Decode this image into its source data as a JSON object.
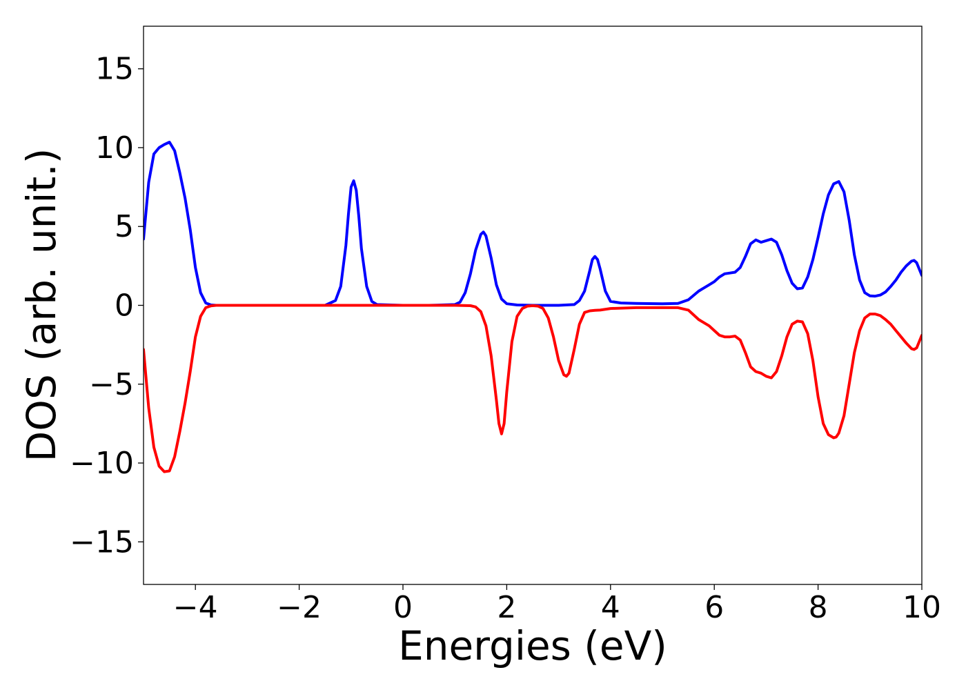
{
  "chart_data": {
    "type": "line",
    "xlabel": "Energies (eV)",
    "ylabel": "DOS (arb. unit.)",
    "xlim": [
      -5,
      10
    ],
    "ylim": [
      -17.7,
      17.7
    ],
    "xticks": [
      -4,
      -2,
      0,
      2,
      4,
      6,
      8,
      10
    ],
    "xtick_labels": [
      "−4",
      "−2",
      "0",
      "2",
      "4",
      "6",
      "8",
      "10"
    ],
    "yticks": [
      15,
      10,
      5,
      0,
      -5,
      -10,
      -15
    ],
    "ytick_labels": [
      "15",
      "10",
      "5",
      "0",
      "−5",
      "−10",
      "−15"
    ],
    "grid": false,
    "legend": "none",
    "series": [
      {
        "color": "#0000ff",
        "x": [
          -5.0,
          -4.9,
          -4.8,
          -4.7,
          -4.6,
          -4.5,
          -4.4,
          -4.3,
          -4.2,
          -4.1,
          -4.0,
          -3.9,
          -3.8,
          -3.7,
          -3.6,
          -3.0,
          -2.0,
          -1.5,
          -1.3,
          -1.2,
          -1.1,
          -1.05,
          -1.0,
          -0.95,
          -0.9,
          -0.85,
          -0.8,
          -0.7,
          -0.6,
          -0.5,
          0.0,
          0.5,
          1.0,
          1.1,
          1.2,
          1.3,
          1.4,
          1.5,
          1.55,
          1.6,
          1.7,
          1.8,
          1.9,
          2.0,
          2.2,
          2.5,
          3.0,
          3.3,
          3.4,
          3.5,
          3.6,
          3.65,
          3.7,
          3.75,
          3.8,
          3.9,
          4.0,
          4.2,
          4.5,
          5.0,
          5.3,
          5.5,
          5.7,
          5.9,
          6.0,
          6.1,
          6.2,
          6.3,
          6.4,
          6.5,
          6.6,
          6.7,
          6.8,
          6.9,
          7.0,
          7.1,
          7.2,
          7.3,
          7.4,
          7.5,
          7.6,
          7.7,
          7.8,
          7.9,
          8.0,
          8.1,
          8.2,
          8.3,
          8.4,
          8.5,
          8.6,
          8.7,
          8.8,
          8.9,
          9.0,
          9.1,
          9.2,
          9.3,
          9.4,
          9.5,
          9.6,
          9.7,
          9.8,
          9.85,
          9.9,
          10.0
        ],
        "y": [
          4.2,
          7.8,
          9.6,
          10.0,
          10.2,
          10.35,
          9.8,
          8.4,
          6.8,
          4.8,
          2.4,
          0.8,
          0.15,
          0.02,
          0.0,
          0.0,
          0.0,
          0.0,
          0.3,
          1.2,
          3.8,
          5.8,
          7.5,
          7.9,
          7.3,
          5.6,
          3.6,
          1.2,
          0.25,
          0.05,
          0.0,
          0.0,
          0.05,
          0.2,
          0.8,
          2.0,
          3.5,
          4.5,
          4.65,
          4.4,
          3.0,
          1.3,
          0.4,
          0.1,
          0.02,
          0.0,
          0.0,
          0.05,
          0.3,
          0.9,
          2.2,
          2.9,
          3.1,
          2.9,
          2.3,
          0.9,
          0.25,
          0.15,
          0.12,
          0.1,
          0.12,
          0.35,
          0.9,
          1.3,
          1.5,
          1.8,
          2.0,
          2.05,
          2.1,
          2.4,
          3.1,
          3.9,
          4.15,
          4.0,
          4.1,
          4.2,
          4.0,
          3.2,
          2.2,
          1.4,
          1.05,
          1.1,
          1.8,
          2.9,
          4.3,
          5.8,
          7.0,
          7.7,
          7.85,
          7.2,
          5.4,
          3.2,
          1.6,
          0.8,
          0.6,
          0.58,
          0.65,
          0.85,
          1.2,
          1.6,
          2.1,
          2.5,
          2.8,
          2.85,
          2.7,
          1.9
        ]
      },
      {
        "color": "#ff0000",
        "x": [
          -5.0,
          -4.9,
          -4.8,
          -4.7,
          -4.6,
          -4.5,
          -4.4,
          -4.3,
          -4.2,
          -4.1,
          -4.0,
          -3.9,
          -3.8,
          -3.7,
          -3.6,
          -3.0,
          -2.0,
          -1.0,
          0.0,
          1.0,
          1.3,
          1.4,
          1.5,
          1.6,
          1.7,
          1.8,
          1.85,
          1.9,
          1.95,
          2.0,
          2.1,
          2.2,
          2.3,
          2.4,
          2.5,
          2.6,
          2.7,
          2.8,
          2.9,
          3.0,
          3.1,
          3.15,
          3.2,
          3.3,
          3.4,
          3.5,
          3.6,
          3.7,
          3.8,
          4.0,
          4.5,
          5.0,
          5.3,
          5.5,
          5.7,
          5.9,
          6.0,
          6.1,
          6.2,
          6.3,
          6.4,
          6.5,
          6.6,
          6.7,
          6.8,
          6.9,
          7.0,
          7.1,
          7.2,
          7.3,
          7.4,
          7.5,
          7.6,
          7.7,
          7.8,
          7.9,
          8.0,
          8.1,
          8.2,
          8.3,
          8.35,
          8.4,
          8.5,
          8.6,
          8.7,
          8.8,
          8.9,
          9.0,
          9.1,
          9.2,
          9.3,
          9.4,
          9.5,
          9.6,
          9.7,
          9.8,
          9.85,
          9.9,
          10.0
        ],
        "y": [
          -2.8,
          -6.5,
          -9.0,
          -10.2,
          -10.55,
          -10.5,
          -9.6,
          -8.0,
          -6.2,
          -4.2,
          -2.0,
          -0.7,
          -0.15,
          -0.03,
          0.0,
          0.0,
          0.0,
          0.0,
          0.0,
          0.0,
          -0.02,
          -0.1,
          -0.4,
          -1.3,
          -3.2,
          -6.0,
          -7.5,
          -8.15,
          -7.5,
          -5.5,
          -2.3,
          -0.7,
          -0.2,
          -0.05,
          -0.02,
          -0.05,
          -0.2,
          -0.8,
          -2.0,
          -3.5,
          -4.4,
          -4.5,
          -4.3,
          -2.8,
          -1.2,
          -0.45,
          -0.35,
          -0.32,
          -0.3,
          -0.2,
          -0.15,
          -0.15,
          -0.15,
          -0.3,
          -0.9,
          -1.3,
          -1.6,
          -1.9,
          -2.0,
          -2.0,
          -1.95,
          -2.2,
          -3.0,
          -3.9,
          -4.2,
          -4.3,
          -4.5,
          -4.6,
          -4.2,
          -3.2,
          -2.0,
          -1.2,
          -1.0,
          -1.05,
          -1.8,
          -3.5,
          -5.8,
          -7.5,
          -8.2,
          -8.4,
          -8.35,
          -8.1,
          -7.0,
          -5.0,
          -3.0,
          -1.6,
          -0.8,
          -0.55,
          -0.55,
          -0.65,
          -0.9,
          -1.2,
          -1.6,
          -2.0,
          -2.4,
          -2.75,
          -2.8,
          -2.7,
          -1.9
        ]
      }
    ]
  }
}
